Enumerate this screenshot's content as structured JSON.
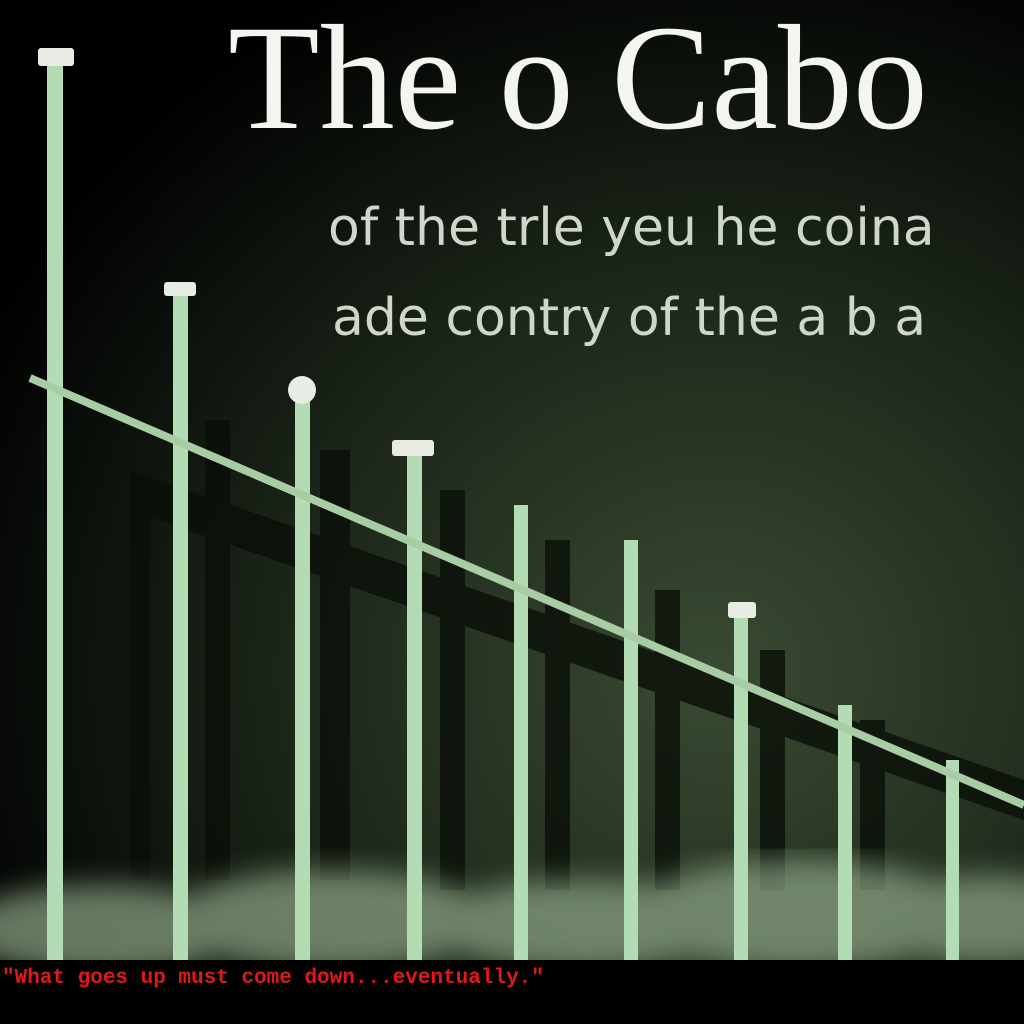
{
  "title": "The o Cabo",
  "subtitle": {
    "lines": [
      "of the trle yeu he coina",
      "ade contry of the a b a"
    ]
  },
  "caption": "\"What goes up must come down...eventually.\""
}
